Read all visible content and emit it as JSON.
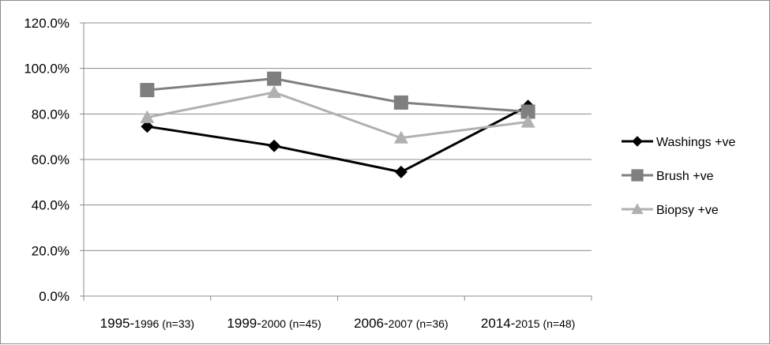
{
  "chart_data": {
    "type": "line",
    "categories": [
      {
        "main": "1995-",
        "sub": "1996 (n=33)"
      },
      {
        "main": "1999-",
        "sub": "2000 (n=45)"
      },
      {
        "main": "2006-",
        "sub": "2007 (n=36)"
      },
      {
        "main": "2014-",
        "sub": "2015 (n=48)"
      }
    ],
    "yticks": [
      "0.0%",
      "20.0%",
      "40.0%",
      "60.0%",
      "80.0%",
      "100.0%",
      "120.0%"
    ],
    "ylim": [
      0,
      120
    ],
    "grid": true,
    "legend_position": "right",
    "series": [
      {
        "name": "Washings +ve",
        "values": [
          74.5,
          66,
          54.5,
          83.5
        ],
        "color": "#000000",
        "marker": "diamond"
      },
      {
        "name": "Brush +ve",
        "values": [
          90.5,
          95.5,
          85,
          81
        ],
        "color": "#7f7f7f",
        "marker": "square"
      },
      {
        "name": "Biopsy +ve",
        "values": [
          78.5,
          89.5,
          69.5,
          76.5
        ],
        "color": "#b0b0b0",
        "marker": "triangle"
      }
    ]
  }
}
